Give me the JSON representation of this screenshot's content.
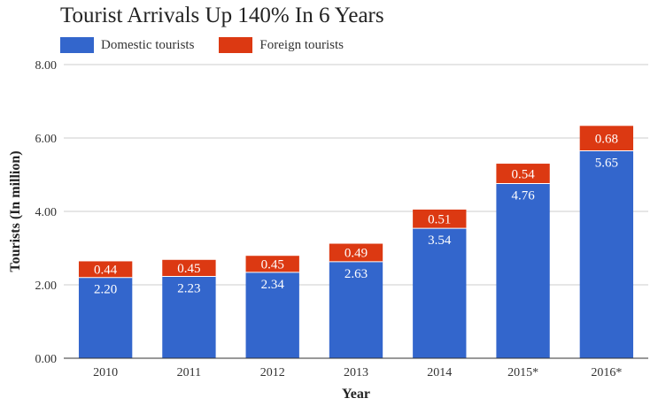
{
  "chart_data": {
    "type": "bar",
    "stacked": true,
    "title": "Tourist Arrivals Up 140% In 6 Years",
    "xlabel": "Year",
    "ylabel": "Tourists (In million)",
    "ylim": [
      0,
      8
    ],
    "yticks": [
      "0.00",
      "2.00",
      "4.00",
      "6.00",
      "8.00"
    ],
    "grid": true,
    "legend_position": "top-left",
    "categories": [
      "2010",
      "2011",
      "2012",
      "2013",
      "2014",
      "2015*",
      "2016*"
    ],
    "series": [
      {
        "name": "Domestic tourists",
        "color": "#3366cc",
        "values": [
          2.2,
          2.23,
          2.34,
          2.63,
          3.54,
          4.76,
          5.65
        ],
        "labels": [
          "2.20",
          "2.23",
          "2.34",
          "2.63",
          "3.54",
          "4.76",
          "5.65"
        ]
      },
      {
        "name": "Foreign tourists",
        "color": "#dc3912",
        "values": [
          0.44,
          0.45,
          0.45,
          0.49,
          0.51,
          0.54,
          0.68
        ],
        "labels": [
          "0.44",
          "0.45",
          "0.45",
          "0.49",
          "0.51",
          "0.54",
          "0.68"
        ]
      }
    ]
  }
}
